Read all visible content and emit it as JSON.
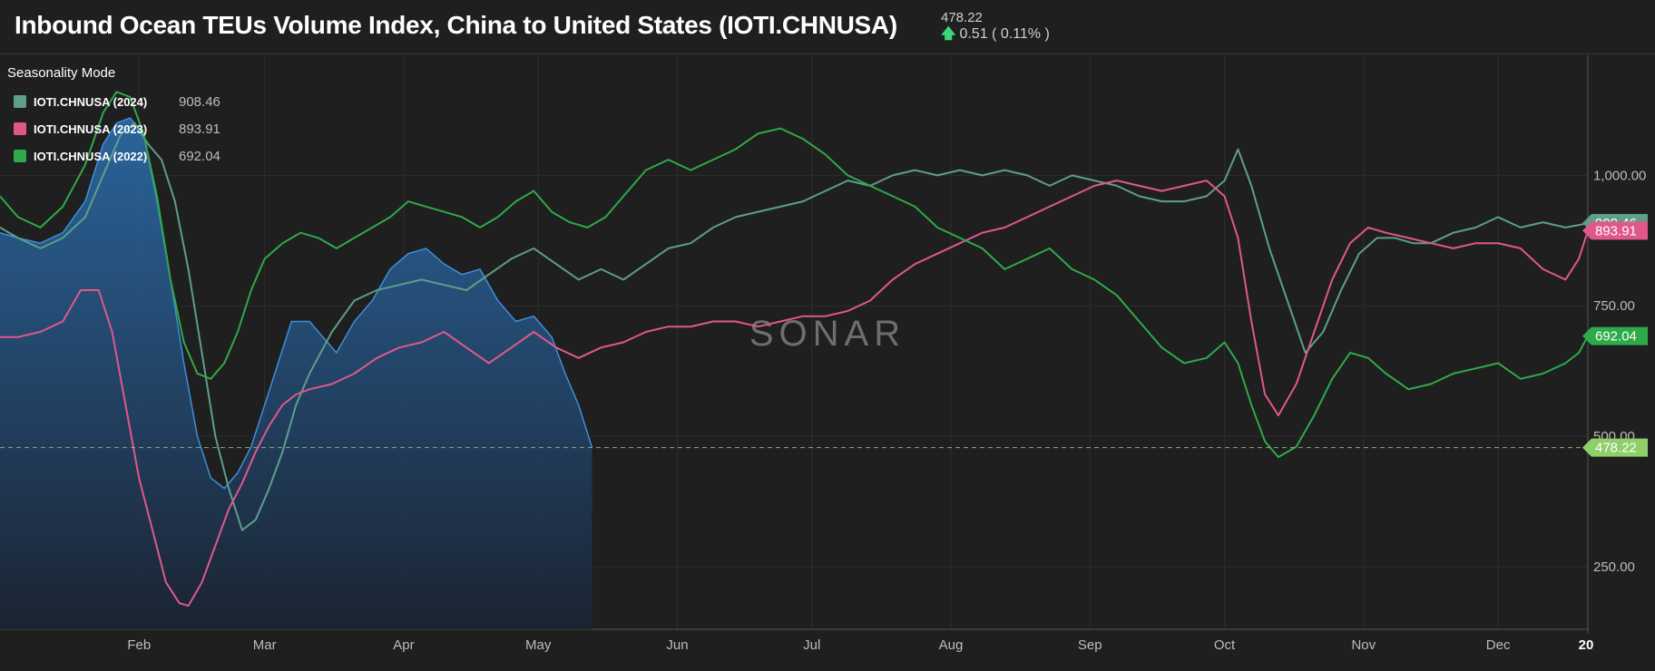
{
  "header": {
    "title": "Inbound Ocean TEUs Volume Index, China to United States (IOTI.CHNUSA)",
    "last_value": "478.22",
    "change_text": "0.51 ( 0.11% )"
  },
  "legend": {
    "mode_label": "Seasonality Mode",
    "items": [
      {
        "label": "IOTI.CHNUSA (2024)",
        "value": "908.46",
        "color": "#5e9e8a"
      },
      {
        "label": "IOTI.CHNUSA (2023)",
        "value": "893.91",
        "color": "#e0588a"
      },
      {
        "label": "IOTI.CHNUSA (2022)",
        "value": "692.04",
        "color": "#2eaa4a"
      }
    ]
  },
  "watermark": "SONAR",
  "chart_data": {
    "type": "line",
    "x_unit": "day of year",
    "x_range": [
      1,
      355
    ],
    "ylim": [
      130,
      1230
    ],
    "y_ticks": [
      "250.00",
      "500.00",
      "750.00",
      "1,000.00"
    ],
    "x_ticks": [
      {
        "label": "Feb",
        "day": 32
      },
      {
        "label": "Mar",
        "day": 60
      },
      {
        "label": "Apr",
        "day": 91
      },
      {
        "label": "May",
        "day": 121
      },
      {
        "label": "Jun",
        "day": 152
      },
      {
        "label": "Jul",
        "day": 182
      },
      {
        "label": "Aug",
        "day": 213
      },
      {
        "label": "Sep",
        "day": 244
      },
      {
        "label": "Oct",
        "day": 274
      },
      {
        "label": "Nov",
        "day": 305
      },
      {
        "label": "Dec",
        "day": 335
      },
      {
        "label": "20",
        "day": 355
      }
    ],
    "reference_line": {
      "value": 478.22
    },
    "last_value_tags": [
      {
        "text": "908.46",
        "value": 908.46,
        "color": "#5e9e8a"
      },
      {
        "text": "893.91",
        "value": 893.91,
        "color": "#e0588a"
      },
      {
        "text": "692.04",
        "value": 692.04,
        "color": "#2eaa4a"
      },
      {
        "text": "478.22",
        "value": 478.22,
        "color": "#8fcf6a"
      }
    ],
    "current": {
      "name": "IOTI.CHNUSA",
      "color": "#3f8fd8",
      "points": [
        [
          1,
          890
        ],
        [
          5,
          880
        ],
        [
          10,
          870
        ],
        [
          15,
          890
        ],
        [
          20,
          950
        ],
        [
          24,
          1060
        ],
        [
          27,
          1100
        ],
        [
          30,
          1110
        ],
        [
          33,
          1080
        ],
        [
          36,
          950
        ],
        [
          39,
          800
        ],
        [
          42,
          640
        ],
        [
          45,
          500
        ],
        [
          48,
          420
        ],
        [
          51,
          400
        ],
        [
          54,
          430
        ],
        [
          57,
          480
        ],
        [
          60,
          560
        ],
        [
          63,
          640
        ],
        [
          66,
          720
        ],
        [
          70,
          720
        ],
        [
          73,
          690
        ],
        [
          76,
          660
        ],
        [
          80,
          720
        ],
        [
          84,
          760
        ],
        [
          88,
          820
        ],
        [
          92,
          850
        ],
        [
          96,
          860
        ],
        [
          100,
          830
        ],
        [
          104,
          810
        ],
        [
          108,
          820
        ],
        [
          112,
          760
        ],
        [
          116,
          720
        ],
        [
          120,
          730
        ],
        [
          124,
          690
        ],
        [
          127,
          620
        ],
        [
          130,
          560
        ],
        [
          133,
          478
        ]
      ]
    },
    "series": [
      {
        "name": "IOTI.CHNUSA (2024)",
        "color": "#5e9e8a",
        "points": [
          [
            1,
            900
          ],
          [
            5,
            880
          ],
          [
            10,
            860
          ],
          [
            15,
            880
          ],
          [
            20,
            920
          ],
          [
            25,
            1020
          ],
          [
            28,
            1080
          ],
          [
            31,
            1100
          ],
          [
            34,
            1060
          ],
          [
            37,
            1030
          ],
          [
            40,
            950
          ],
          [
            43,
            820
          ],
          [
            46,
            660
          ],
          [
            49,
            500
          ],
          [
            52,
            400
          ],
          [
            55,
            320
          ],
          [
            58,
            340
          ],
          [
            61,
            400
          ],
          [
            64,
            470
          ],
          [
            67,
            560
          ],
          [
            70,
            620
          ],
          [
            75,
            700
          ],
          [
            80,
            760
          ],
          [
            85,
            780
          ],
          [
            90,
            790
          ],
          [
            95,
            800
          ],
          [
            100,
            790
          ],
          [
            105,
            780
          ],
          [
            110,
            810
          ],
          [
            115,
            840
          ],
          [
            120,
            860
          ],
          [
            125,
            830
          ],
          [
            130,
            800
          ],
          [
            135,
            820
          ],
          [
            140,
            800
          ],
          [
            145,
            830
          ],
          [
            150,
            860
          ],
          [
            155,
            870
          ],
          [
            160,
            900
          ],
          [
            165,
            920
          ],
          [
            170,
            930
          ],
          [
            175,
            940
          ],
          [
            180,
            950
          ],
          [
            185,
            970
          ],
          [
            190,
            990
          ],
          [
            195,
            980
          ],
          [
            200,
            1000
          ],
          [
            205,
            1010
          ],
          [
            210,
            1000
          ],
          [
            215,
            1010
          ],
          [
            220,
            1000
          ],
          [
            225,
            1010
          ],
          [
            230,
            1000
          ],
          [
            235,
            980
          ],
          [
            240,
            1000
          ],
          [
            245,
            990
          ],
          [
            250,
            980
          ],
          [
            255,
            960
          ],
          [
            260,
            950
          ],
          [
            265,
            950
          ],
          [
            270,
            960
          ],
          [
            274,
            990
          ],
          [
            277,
            1050
          ],
          [
            280,
            980
          ],
          [
            284,
            860
          ],
          [
            288,
            760
          ],
          [
            292,
            660
          ],
          [
            296,
            700
          ],
          [
            300,
            780
          ],
          [
            304,
            850
          ],
          [
            308,
            880
          ],
          [
            312,
            880
          ],
          [
            316,
            870
          ],
          [
            320,
            870
          ],
          [
            325,
            890
          ],
          [
            330,
            900
          ],
          [
            335,
            920
          ],
          [
            340,
            900
          ],
          [
            345,
            910
          ],
          [
            350,
            900
          ],
          [
            355,
            908
          ]
        ]
      },
      {
        "name": "IOTI.CHNUSA (2023)",
        "color": "#e0588a",
        "points": [
          [
            1,
            690
          ],
          [
            5,
            690
          ],
          [
            10,
            700
          ],
          [
            15,
            720
          ],
          [
            19,
            780
          ],
          [
            23,
            780
          ],
          [
            26,
            700
          ],
          [
            29,
            560
          ],
          [
            32,
            420
          ],
          [
            35,
            320
          ],
          [
            38,
            220
          ],
          [
            41,
            180
          ],
          [
            43,
            175
          ],
          [
            46,
            220
          ],
          [
            49,
            290
          ],
          [
            52,
            360
          ],
          [
            55,
            410
          ],
          [
            58,
            470
          ],
          [
            61,
            520
          ],
          [
            64,
            560
          ],
          [
            67,
            580
          ],
          [
            70,
            590
          ],
          [
            75,
            600
          ],
          [
            80,
            620
          ],
          [
            85,
            650
          ],
          [
            90,
            670
          ],
          [
            95,
            680
          ],
          [
            100,
            700
          ],
          [
            105,
            670
          ],
          [
            110,
            640
          ],
          [
            115,
            670
          ],
          [
            120,
            700
          ],
          [
            125,
            670
          ],
          [
            130,
            650
          ],
          [
            135,
            670
          ],
          [
            140,
            680
          ],
          [
            145,
            700
          ],
          [
            150,
            710
          ],
          [
            155,
            710
          ],
          [
            160,
            720
          ],
          [
            165,
            720
          ],
          [
            170,
            710
          ],
          [
            175,
            720
          ],
          [
            180,
            730
          ],
          [
            185,
            730
          ],
          [
            190,
            740
          ],
          [
            195,
            760
          ],
          [
            200,
            800
          ],
          [
            205,
            830
          ],
          [
            210,
            850
          ],
          [
            215,
            870
          ],
          [
            220,
            890
          ],
          [
            225,
            900
          ],
          [
            230,
            920
          ],
          [
            235,
            940
          ],
          [
            240,
            960
          ],
          [
            245,
            980
          ],
          [
            250,
            990
          ],
          [
            255,
            980
          ],
          [
            260,
            970
          ],
          [
            265,
            980
          ],
          [
            270,
            990
          ],
          [
            274,
            960
          ],
          [
            277,
            880
          ],
          [
            280,
            720
          ],
          [
            283,
            580
          ],
          [
            286,
            540
          ],
          [
            290,
            600
          ],
          [
            294,
            700
          ],
          [
            298,
            800
          ],
          [
            302,
            870
          ],
          [
            306,
            900
          ],
          [
            310,
            890
          ],
          [
            315,
            880
          ],
          [
            320,
            870
          ],
          [
            325,
            860
          ],
          [
            330,
            870
          ],
          [
            335,
            870
          ],
          [
            340,
            860
          ],
          [
            345,
            820
          ],
          [
            350,
            800
          ],
          [
            353,
            840
          ],
          [
            355,
            894
          ]
        ]
      },
      {
        "name": "IOTI.CHNUSA (2022)",
        "color": "#2eaa4a",
        "points": [
          [
            1,
            960
          ],
          [
            5,
            920
          ],
          [
            10,
            900
          ],
          [
            15,
            940
          ],
          [
            20,
            1020
          ],
          [
            24,
            1120
          ],
          [
            27,
            1160
          ],
          [
            30,
            1150
          ],
          [
            33,
            1080
          ],
          [
            36,
            960
          ],
          [
            39,
            800
          ],
          [
            42,
            680
          ],
          [
            45,
            620
          ],
          [
            48,
            610
          ],
          [
            51,
            640
          ],
          [
            54,
            700
          ],
          [
            57,
            780
          ],
          [
            60,
            840
          ],
          [
            64,
            870
          ],
          [
            68,
            890
          ],
          [
            72,
            880
          ],
          [
            76,
            860
          ],
          [
            80,
            880
          ],
          [
            84,
            900
          ],
          [
            88,
            920
          ],
          [
            92,
            950
          ],
          [
            96,
            940
          ],
          [
            100,
            930
          ],
          [
            104,
            920
          ],
          [
            108,
            900
          ],
          [
            112,
            920
          ],
          [
            116,
            950
          ],
          [
            120,
            970
          ],
          [
            124,
            930
          ],
          [
            128,
            910
          ],
          [
            132,
            900
          ],
          [
            136,
            920
          ],
          [
            140,
            960
          ],
          [
            145,
            1010
          ],
          [
            150,
            1030
          ],
          [
            155,
            1010
          ],
          [
            160,
            1030
          ],
          [
            165,
            1050
          ],
          [
            170,
            1080
          ],
          [
            175,
            1090
          ],
          [
            180,
            1070
          ],
          [
            185,
            1040
          ],
          [
            190,
            1000
          ],
          [
            195,
            980
          ],
          [
            200,
            960
          ],
          [
            205,
            940
          ],
          [
            210,
            900
          ],
          [
            215,
            880
          ],
          [
            220,
            860
          ],
          [
            225,
            820
          ],
          [
            230,
            840
          ],
          [
            235,
            860
          ],
          [
            240,
            820
          ],
          [
            245,
            800
          ],
          [
            250,
            770
          ],
          [
            255,
            720
          ],
          [
            260,
            670
          ],
          [
            265,
            640
          ],
          [
            270,
            650
          ],
          [
            274,
            680
          ],
          [
            277,
            640
          ],
          [
            280,
            560
          ],
          [
            283,
            490
          ],
          [
            286,
            460
          ],
          [
            290,
            480
          ],
          [
            294,
            540
          ],
          [
            298,
            610
          ],
          [
            302,
            660
          ],
          [
            306,
            650
          ],
          [
            310,
            620
          ],
          [
            315,
            590
          ],
          [
            320,
            600
          ],
          [
            325,
            620
          ],
          [
            330,
            630
          ],
          [
            335,
            640
          ],
          [
            340,
            610
          ],
          [
            345,
            620
          ],
          [
            350,
            640
          ],
          [
            353,
            660
          ],
          [
            355,
            692
          ]
        ]
      }
    ]
  }
}
